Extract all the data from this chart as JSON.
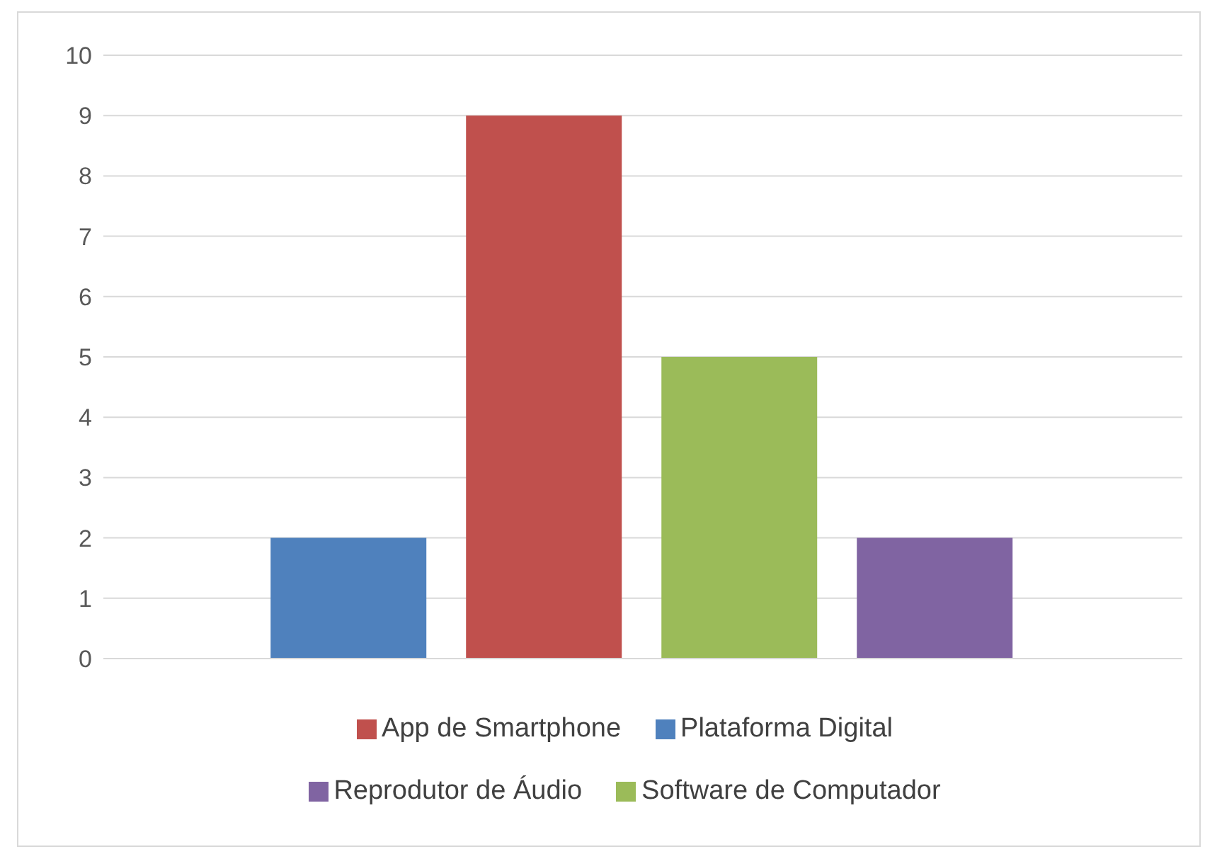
{
  "chart_data": {
    "type": "bar",
    "categories": [
      null
    ],
    "series": [
      {
        "name": "Plataforma Digital",
        "color": "#4f81bd",
        "values": [
          2
        ]
      },
      {
        "name": "App de Smartphone",
        "color": "#c0504d",
        "values": [
          9
        ]
      },
      {
        "name": "Software de Computador",
        "color": "#9bbb59",
        "values": [
          5
        ]
      },
      {
        "name": "Reprodutor de Áudio",
        "color": "#8064a2",
        "values": [
          2
        ]
      }
    ],
    "ylim": [
      0,
      10
    ],
    "yticks": [
      0,
      1,
      2,
      3,
      4,
      5,
      6,
      7,
      8,
      9,
      10
    ],
    "grid": "y",
    "legend": "bottom"
  }
}
